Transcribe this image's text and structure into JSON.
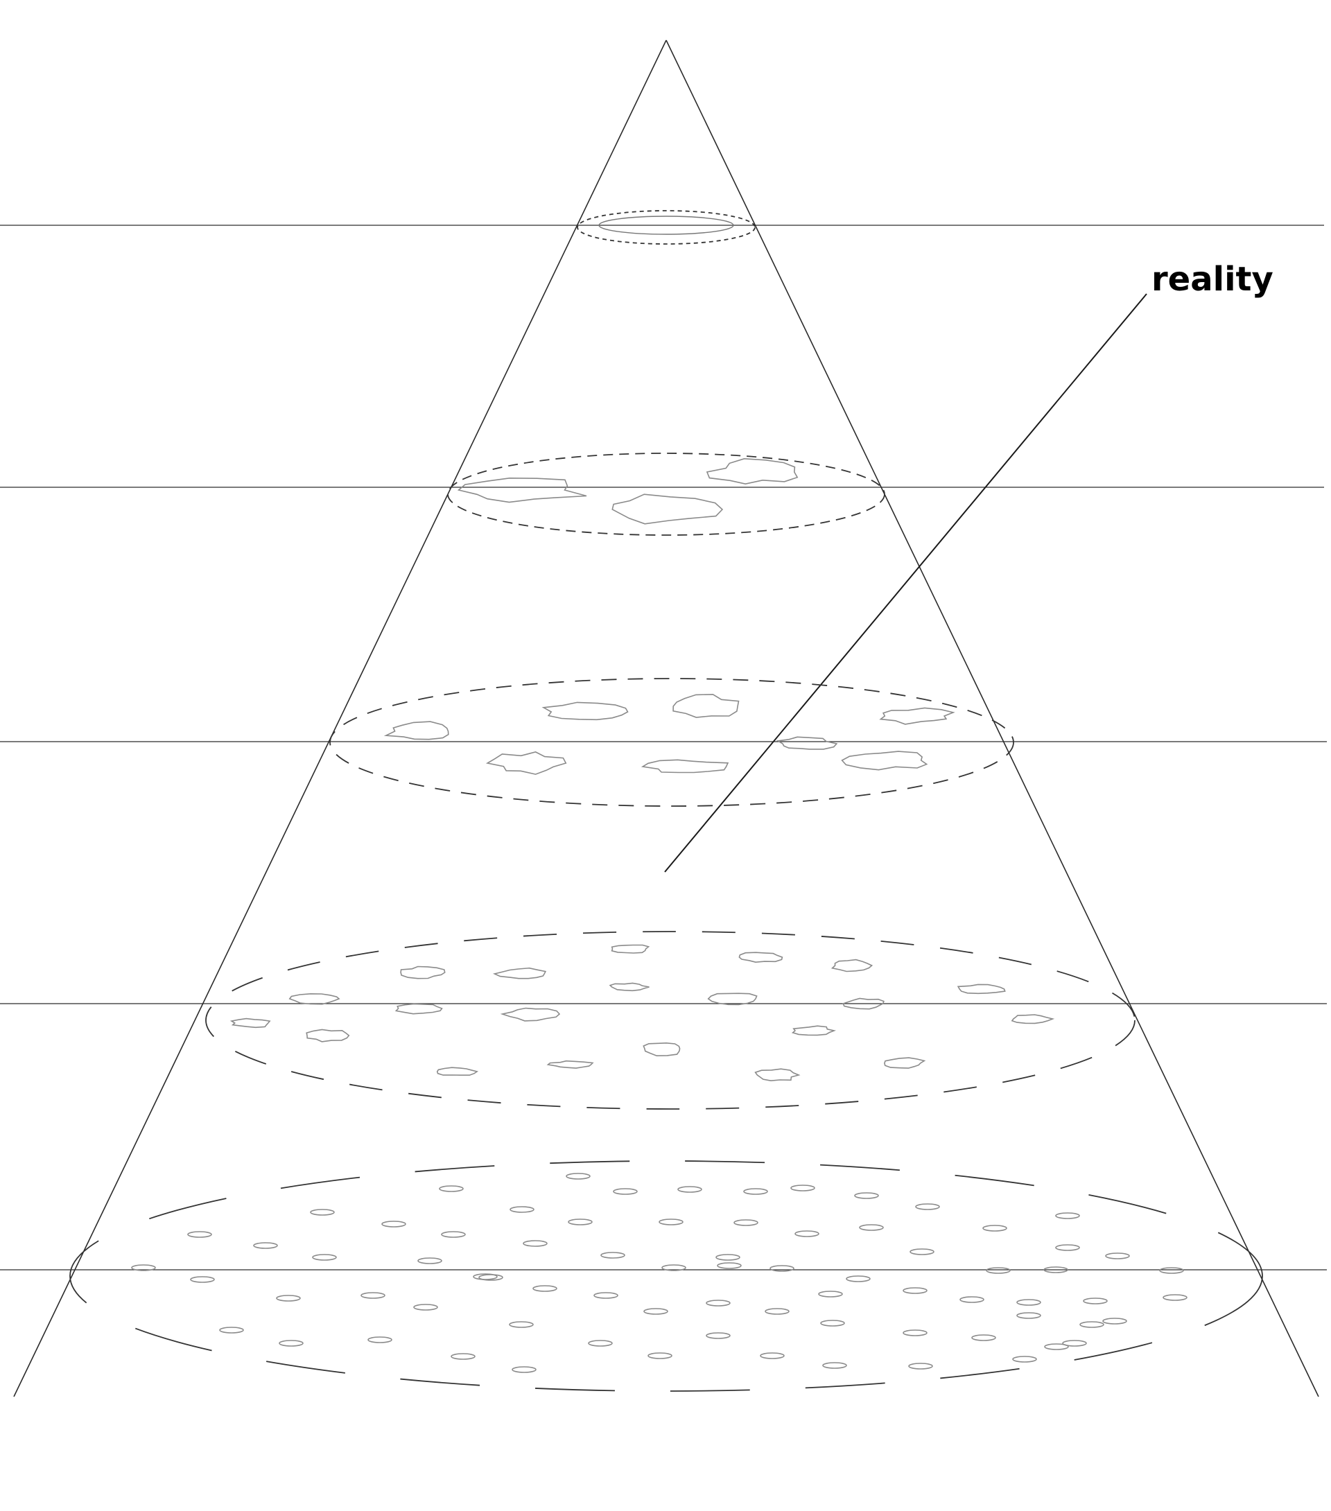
{
  "diagram": {
    "label": "reality",
    "colors": {
      "background": "#ffffff",
      "line": "#2b2b2b",
      "ellipse": "#333333",
      "blob": "#8a8a8a",
      "label": "#000000"
    }
  }
}
